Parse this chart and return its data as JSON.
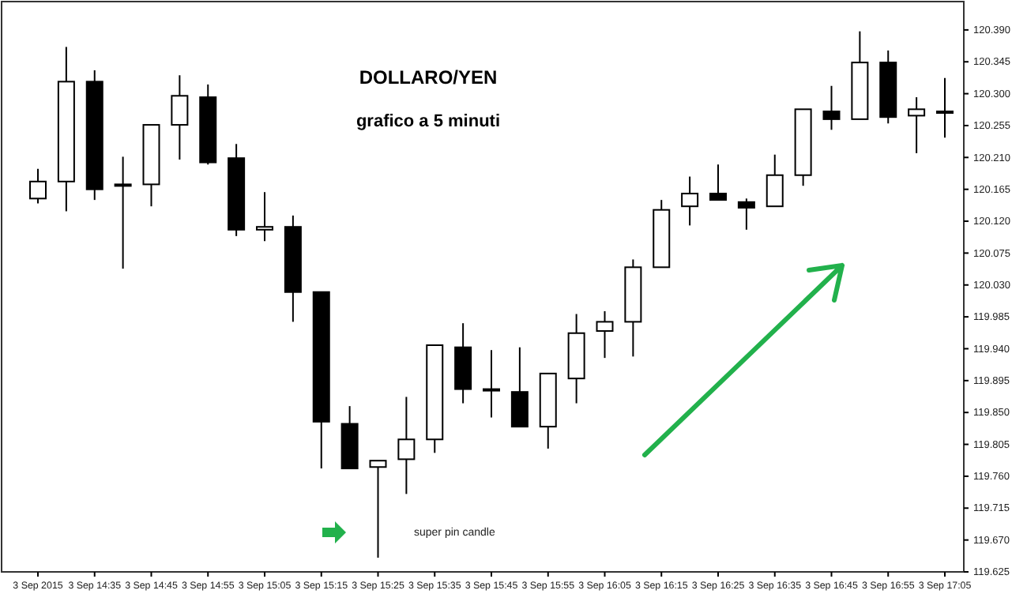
{
  "chart_data": {
    "type": "candlestick",
    "title": "DOLLARO/YEN",
    "subtitle": "grafico a 5 minuti",
    "categories": [
      "3 Sep 2015",
      null,
      "3 Sep 14:35",
      null,
      "3 Sep 14:45",
      null,
      "3 Sep 14:55",
      null,
      "3 Sep 15:05",
      null,
      "3 Sep 15:15",
      null,
      "3 Sep 15:25",
      null,
      "3 Sep 15:35",
      null,
      "3 Sep 15:45",
      null,
      "3 Sep 15:55",
      null,
      "3 Sep 16:05",
      null,
      "3 Sep 16:15",
      null,
      "3 Sep 16:25",
      null,
      "3 Sep 16:35",
      null,
      "3 Sep 16:45",
      null,
      "3 Sep 16:55",
      null,
      "3 Sep 17:05"
    ],
    "ohlc": [
      [
        120.152,
        120.194,
        120.145,
        120.176
      ],
      [
        120.176,
        120.366,
        120.134,
        120.317
      ],
      [
        120.317,
        120.333,
        120.15,
        120.165
      ],
      [
        120.172,
        120.211,
        120.053,
        120.172
      ],
      [
        120.172,
        120.256,
        120.141,
        120.256
      ],
      [
        120.256,
        120.326,
        120.207,
        120.297
      ],
      [
        120.295,
        120.313,
        120.2,
        120.203
      ],
      [
        120.209,
        120.229,
        120.099,
        120.108
      ],
      [
        120.108,
        120.161,
        120.092,
        120.112
      ],
      [
        120.112,
        120.128,
        119.978,
        120.02
      ],
      [
        120.02,
        120.02,
        119.771,
        119.837
      ],
      [
        119.834,
        119.859,
        119.771,
        119.771
      ],
      [
        119.773,
        119.782,
        119.645,
        119.782
      ],
      [
        119.784,
        119.872,
        119.735,
        119.812
      ],
      [
        119.812,
        119.945,
        119.793,
        119.945
      ],
      [
        119.942,
        119.976,
        119.863,
        119.883
      ],
      [
        119.883,
        119.938,
        119.843,
        119.883
      ],
      [
        119.879,
        119.942,
        119.83,
        119.83
      ],
      [
        119.83,
        119.905,
        119.799,
        119.905
      ],
      [
        119.898,
        119.989,
        119.863,
        119.962
      ],
      [
        119.965,
        119.993,
        119.927,
        119.978
      ],
      [
        119.978,
        120.066,
        119.929,
        120.055
      ],
      [
        120.055,
        120.15,
        120.055,
        120.136
      ],
      [
        120.141,
        120.183,
        120.114,
        120.159
      ],
      [
        120.159,
        120.2,
        120.15,
        120.15
      ],
      [
        120.147,
        120.152,
        120.108,
        120.139
      ],
      [
        120.141,
        120.214,
        120.141,
        120.185
      ],
      [
        120.185,
        120.278,
        120.17,
        120.278
      ],
      [
        120.275,
        120.311,
        120.249,
        120.264
      ],
      [
        120.264,
        120.388,
        120.264,
        120.344
      ],
      [
        120.344,
        120.361,
        120.258,
        120.267
      ],
      [
        120.269,
        120.295,
        120.216,
        120.278
      ],
      [
        120.275,
        120.322,
        120.238,
        120.275
      ]
    ],
    "ylim": [
      119.625,
      120.43
    ],
    "yticks": [
      {
        "value": 120.39,
        "label": "120.390"
      },
      {
        "value": 120.345,
        "label": "120.345"
      },
      {
        "value": 120.3,
        "label": "120.300"
      },
      {
        "value": 120.255,
        "label": "120.255"
      },
      {
        "value": 120.21,
        "label": "120.210"
      },
      {
        "value": 120.165,
        "label": "120.165"
      },
      {
        "value": 120.12,
        "label": "120.120"
      },
      {
        "value": 120.075,
        "label": "120.075"
      },
      {
        "value": 120.03,
        "label": "120.030"
      },
      {
        "value": 119.985,
        "label": "119.985"
      },
      {
        "value": 119.94,
        "label": "119.940"
      },
      {
        "value": 119.895,
        "label": "119.895"
      },
      {
        "value": 119.85,
        "label": "119.850"
      },
      {
        "value": 119.805,
        "label": "119.805"
      },
      {
        "value": 119.76,
        "label": "119.760"
      },
      {
        "value": 119.715,
        "label": "119.715"
      },
      {
        "value": 119.67,
        "label": "119.670"
      },
      {
        "value": 119.625,
        "label": "119.625"
      }
    ],
    "annotations": [
      "super pin candle"
    ]
  }
}
